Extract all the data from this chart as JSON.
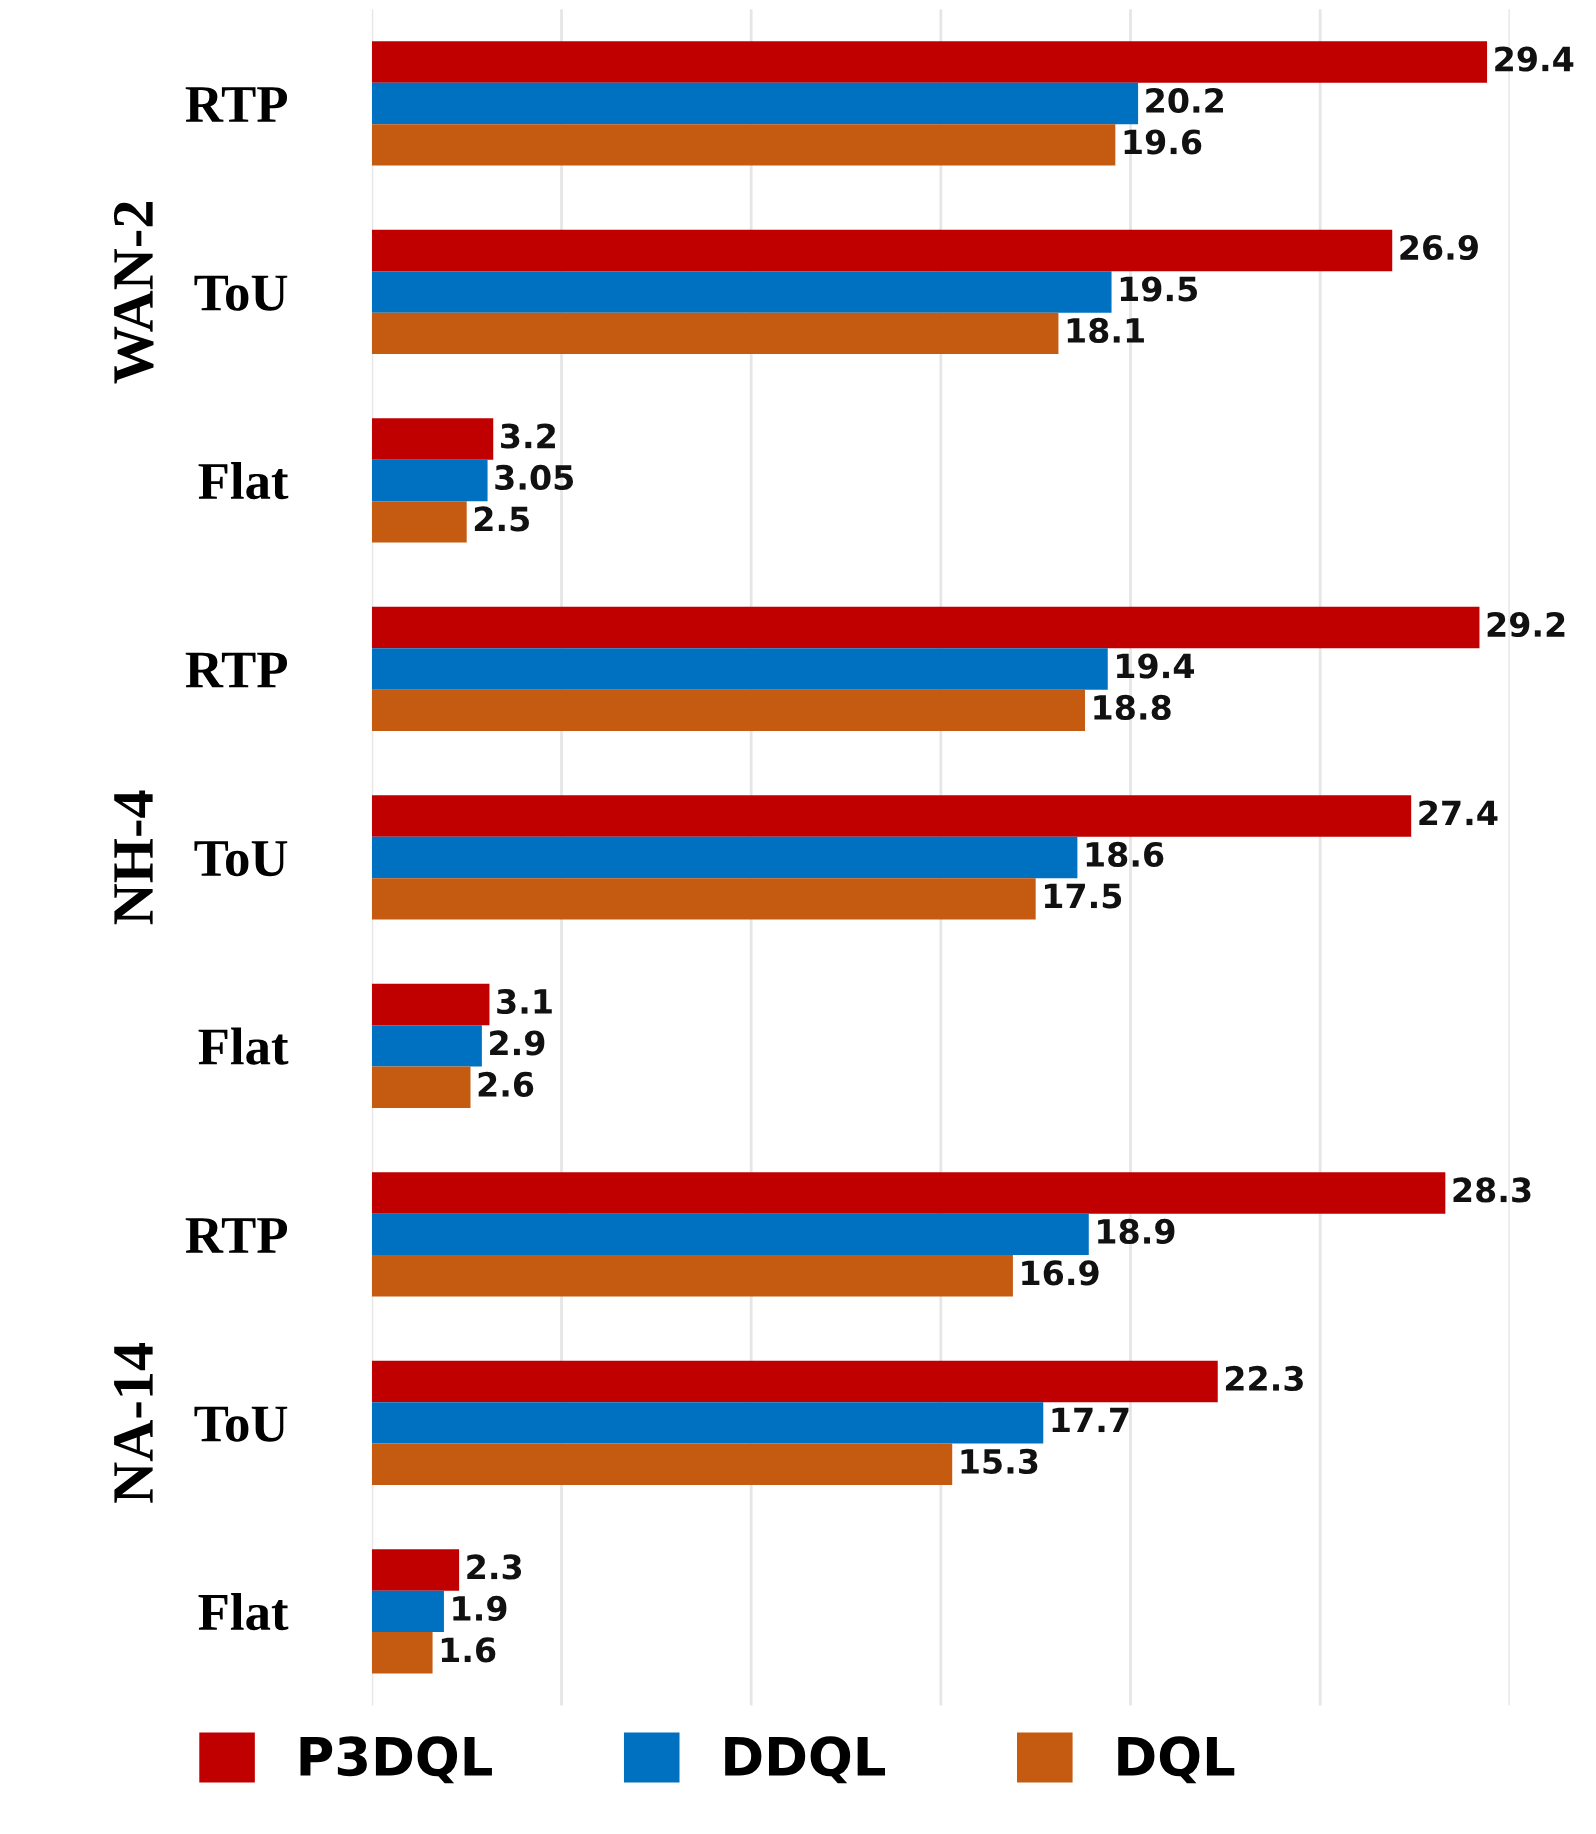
{
  "chart_data": {
    "type": "bar",
    "orientation": "horizontal",
    "categories": [
      "RTP",
      "ToU",
      "Flat",
      "RTP",
      "ToU",
      "Flat",
      "RTP",
      "ToU",
      "Flat"
    ],
    "series": [
      {
        "name": "P3DQL",
        "color": "#c00000",
        "values": [
          29.4,
          26.9,
          3.2,
          29.2,
          27.4,
          3.1,
          28.3,
          22.3,
          2.3
        ]
      },
      {
        "name": "DDQL",
        "color": "#0070c0",
        "values": [
          20.2,
          19.5,
          3.05,
          19.4,
          18.6,
          2.9,
          18.9,
          17.7,
          1.9
        ]
      },
      {
        "name": "DQL",
        "color": "#c55a11",
        "values": [
          19.6,
          18.1,
          2.5,
          18.8,
          17.5,
          2.6,
          16.9,
          15.3,
          1.6
        ]
      }
    ],
    "annotations": [
      "WAN-2",
      "NH-4",
      "NA-14"
    ],
    "xlim": [
      0,
      30
    ],
    "xticks": [
      {
        "value": 0,
        "label": null
      },
      {
        "value": 5,
        "label": null
      },
      {
        "value": 10,
        "label": null
      },
      {
        "value": 15,
        "label": null
      },
      {
        "value": 20,
        "label": null
      },
      {
        "value": 25,
        "label": null
      },
      {
        "value": 30,
        "label": null
      }
    ],
    "tick_labels": "y",
    "grid": "x",
    "legend": "bottom",
    "data_labels": true
  }
}
